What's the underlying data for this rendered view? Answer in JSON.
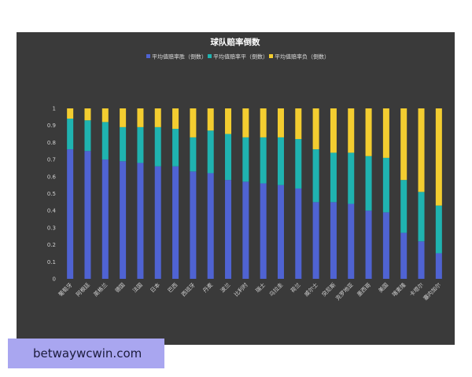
{
  "watermark": {
    "text": "betwaywcwin.com"
  },
  "chart_data": {
    "type": "bar",
    "stacked": true,
    "title": "球队赔率倒数",
    "legend_position": "top-center",
    "grid": false,
    "ylim": [
      0,
      1
    ],
    "yticks": [
      "0",
      "0.1",
      "0.2",
      "0.3",
      "0.4",
      "0.5",
      "0.6",
      "0.7",
      "0.8",
      "0.9",
      "1"
    ],
    "categories": [
      "葡萄牙",
      "阿根廷",
      "英格兰",
      "德国",
      "法国",
      "日本",
      "巴西",
      "西班牙",
      "丹麦",
      "波兰",
      "比利时",
      "瑞士",
      "乌拉圭",
      "荷兰",
      "威尔士",
      "突尼斯",
      "克罗地亚",
      "墨西哥",
      "美国",
      "喀麦隆",
      "卡塔尔",
      "塞内加尔"
    ],
    "series": [
      {
        "name": "平均值赔率胜（倒数）",
        "color": "#4f63d2",
        "values": [
          0.76,
          0.75,
          0.7,
          0.69,
          0.68,
          0.66,
          0.66,
          0.63,
          0.62,
          0.58,
          0.57,
          0.56,
          0.55,
          0.53,
          0.45,
          0.45,
          0.44,
          0.4,
          0.39,
          0.27,
          0.22,
          0.15
        ]
      },
      {
        "name": "平均值赔率平（倒数）",
        "color": "#1fb3b0",
        "values": [
          0.18,
          0.18,
          0.22,
          0.2,
          0.21,
          0.23,
          0.22,
          0.2,
          0.25,
          0.27,
          0.26,
          0.27,
          0.28,
          0.29,
          0.31,
          0.29,
          0.3,
          0.32,
          0.32,
          0.31,
          0.29,
          0.28
        ]
      },
      {
        "name": "平均值赔率负（倒数）",
        "color": "#f3cd30",
        "values": [
          0.06,
          0.07,
          0.08,
          0.11,
          0.11,
          0.11,
          0.12,
          0.17,
          0.13,
          0.15,
          0.17,
          0.17,
          0.17,
          0.18,
          0.24,
          0.26,
          0.26,
          0.28,
          0.29,
          0.42,
          0.49,
          0.57
        ]
      }
    ]
  }
}
